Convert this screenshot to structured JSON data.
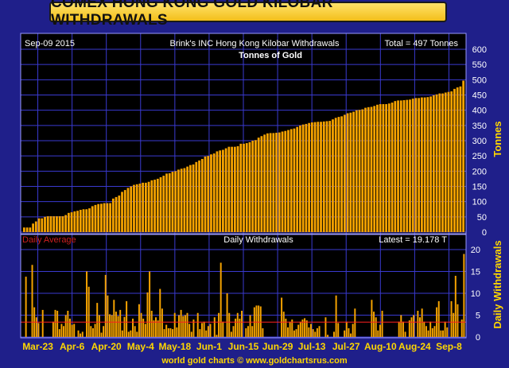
{
  "header": {
    "title": "COMEX HONG KONG GOLD KILOBAR WITHDRAWALS"
  },
  "colors": {
    "background": "#1f1f8a",
    "panel": "#000000",
    "grid": "#3a3ad0",
    "bar": "#f5a300",
    "text": "#ffffff",
    "axis_label": "#ffd700",
    "average_line": "#ff2020",
    "footer": "#ffd700"
  },
  "chart_data": [
    {
      "type": "bar",
      "id": "cumulative",
      "date_label": "Sep-09  2015",
      "title": "Brink's INC Hong Kong Kilobar Withdrawals",
      "total_label": "Total = 497 Tonnes",
      "subtitle": "Tonnes of Gold",
      "ylabel": "Tonnes",
      "ylim": [
        0,
        600
      ],
      "yticks": [
        0,
        50,
        100,
        150,
        200,
        250,
        300,
        350,
        400,
        450,
        500,
        550,
        600
      ],
      "grid": true,
      "values": [
        15,
        15,
        15,
        28,
        35,
        45,
        45,
        50,
        52,
        52,
        52,
        52,
        52,
        52,
        56,
        63,
        65,
        68,
        70,
        73,
        75,
        75,
        78,
        85,
        89,
        92,
        93,
        95,
        95,
        95,
        110,
        115,
        120,
        132,
        138,
        145,
        150,
        155,
        157,
        159,
        162,
        162,
        165,
        170,
        172,
        175,
        180,
        185,
        192,
        193,
        198,
        200,
        205,
        208,
        210,
        215,
        220,
        222,
        230,
        235,
        240,
        248,
        250,
        255,
        258,
        265,
        268,
        270,
        275,
        280,
        280,
        280,
        282,
        290,
        290,
        292,
        295,
        300,
        302,
        310,
        315,
        320,
        324,
        325,
        325,
        326,
        327,
        330,
        332,
        335,
        338,
        340,
        345,
        350,
        353,
        355,
        358,
        360,
        361,
        362,
        362,
        363,
        364,
        365,
        370,
        375,
        378,
        380,
        385,
        390,
        392,
        395,
        400,
        401,
        403,
        408,
        410,
        411,
        414,
        418,
        420,
        420,
        420,
        422,
        425,
        430,
        432,
        432,
        433,
        434,
        435,
        438,
        440,
        440,
        442,
        442,
        443,
        445,
        449,
        452,
        455,
        455,
        458,
        460,
        462,
        470,
        475,
        478,
        497
      ]
    },
    {
      "type": "bar",
      "id": "daily",
      "legend_label": "Daily Average",
      "title": "Daily Withdrawals",
      "latest_label": "Latest = 19.178 T",
      "ylabel": "Daily Withdrawals",
      "ylim": [
        0,
        20
      ],
      "yticks": [
        0,
        5,
        10,
        15,
        20
      ],
      "daily_average": 3.4,
      "grid": true,
      "xticks": [
        "Mar-23",
        "Apr-6",
        "Apr-20",
        "May-4",
        "May-18",
        "Jun-1",
        "Jun-15",
        "Jun-29",
        "Jul-13",
        "Jul-27",
        "Aug-10",
        "Aug-24",
        "Sep-8"
      ],
      "values": [
        0,
        13.8,
        0,
        0,
        16.5,
        6.8,
        4.5,
        3.2,
        0,
        6.2,
        0,
        0,
        0,
        0,
        3.5,
        6.2,
        6.0,
        1.8,
        3.0,
        2.5,
        5.0,
        6.0,
        4.2,
        2.8,
        3.0,
        0,
        1.5,
        0.8,
        1.2,
        0,
        15.0,
        11.5,
        2.5,
        2.0,
        3.0,
        7.8,
        5.0,
        1.0,
        2.5,
        14.2,
        9.5,
        5.2,
        5.0,
        8.5,
        5.8,
        4.8,
        6.2,
        1.5,
        4.6,
        8.2,
        1.2,
        1.5,
        4.2,
        2.5,
        1.2,
        7.5,
        5.5,
        4.2,
        3.0,
        10.2,
        15.0,
        6.0,
        3.8,
        4.5,
        3.8,
        11.0,
        6.5,
        1.8,
        2.8,
        2.0,
        2.0,
        1.8,
        5.5,
        2.2,
        5.0,
        6.2,
        4.8,
        5.0,
        5.5,
        3.0,
        1.2,
        4.0,
        0,
        5.5,
        1.8,
        3.2,
        3.5,
        1.5,
        2.5,
        3.0,
        0,
        4.5,
        0.5,
        5.5,
        17.0,
        3.5,
        0,
        10.0,
        5.5,
        1.2,
        2.5,
        4.2,
        5.5,
        4.2,
        6.0,
        0,
        2.0,
        2.5,
        5.0,
        2.5,
        6.8,
        7.2,
        7.2,
        7.0,
        2.0,
        0,
        0,
        0,
        0,
        0,
        0,
        0,
        0,
        9.0,
        5.8,
        4.2,
        2.2,
        3.5,
        4.0,
        1.5,
        1.8,
        2.8,
        3.5,
        4.0,
        4.3,
        3.8,
        2.2,
        3.0,
        1.8,
        1.2,
        2.0,
        2.5,
        0,
        0,
        4.5,
        0.5,
        0,
        0,
        1.2,
        9.5,
        3.2,
        0,
        0,
        1.5,
        3.5,
        2.0,
        0.8,
        3.0,
        6.5,
        0,
        0,
        0,
        0,
        0,
        0,
        0,
        8.5,
        5.8,
        4.5,
        1.5,
        2.8,
        6.0,
        0,
        0,
        0,
        0,
        0,
        0,
        0,
        3.5,
        5.0,
        3.5,
        1.2,
        0,
        3.8,
        4.5,
        5.0,
        0,
        6.0,
        4.5,
        6.5,
        3.5,
        2.5,
        1.5,
        3.5,
        2.0,
        2.5,
        6.8,
        8.2,
        1.5,
        1.5,
        3.5,
        2.2,
        0,
        8.2,
        5.5,
        14.0,
        7.5,
        0,
        4.0,
        19.0
      ]
    }
  ],
  "footer": {
    "credit": "world gold charts © www.goldchartsrus.com"
  }
}
